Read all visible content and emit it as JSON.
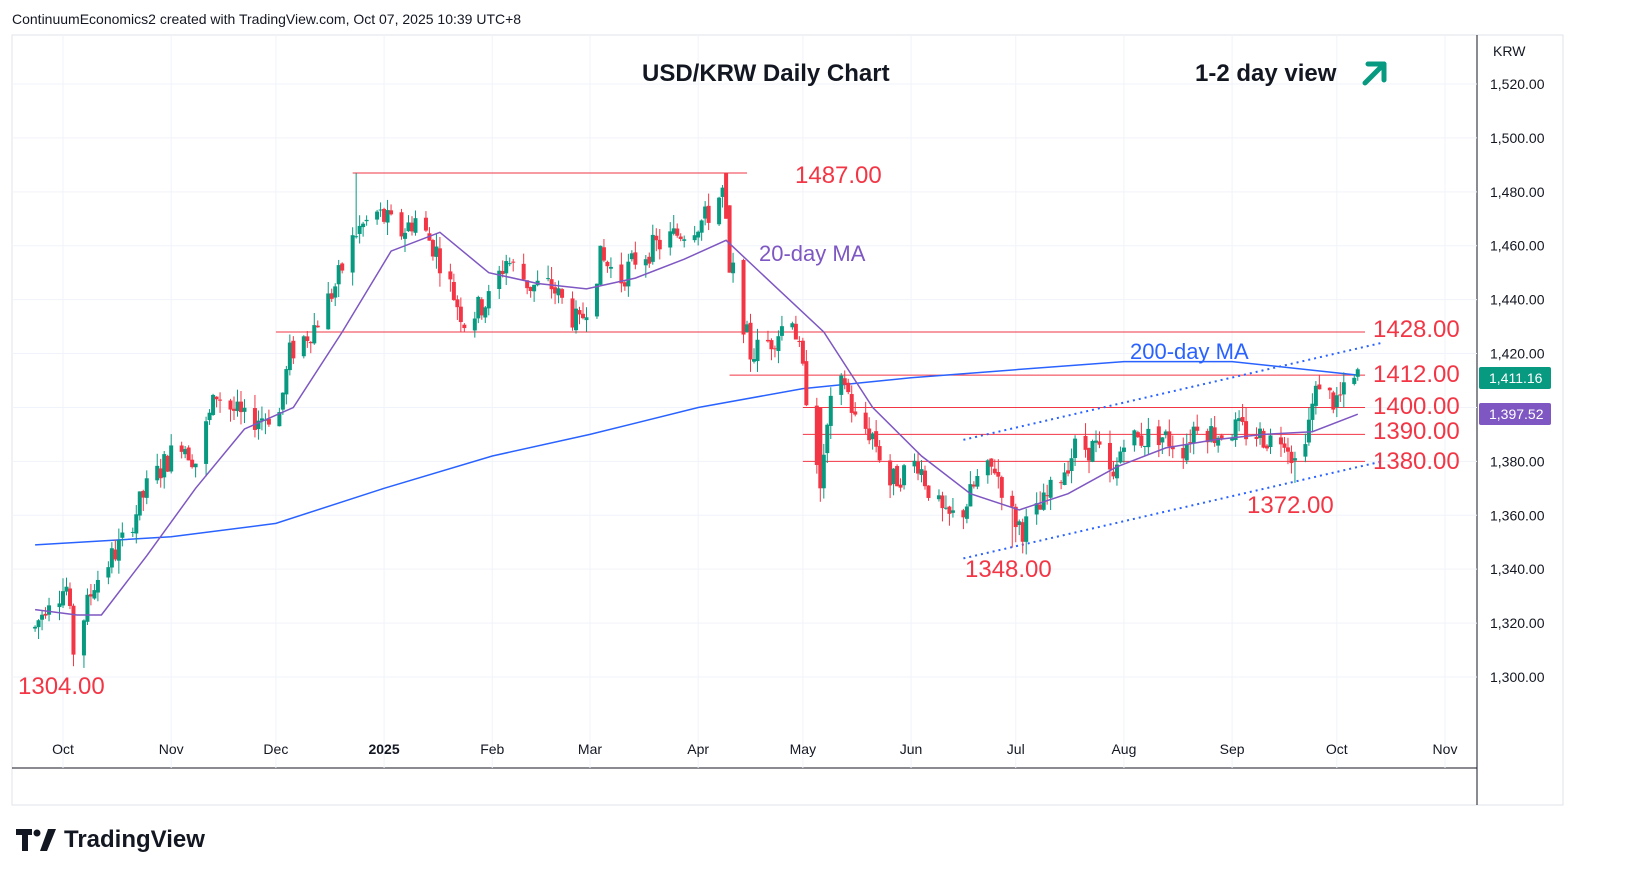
{
  "header": {
    "attribution": "ContinuumEconomics2 created with TradingView.com, Oct 07, 2025 10:39 UTC+8"
  },
  "brand": {
    "name": "TradingView",
    "logo_icon": "tradingview-logo-icon"
  },
  "colors": {
    "up": "#089981",
    "down": "#f23645",
    "ma20": "#7e57c2",
    "ma200": "#2962ff",
    "level": "#f23645",
    "trend": "#2962ff",
    "arrow": "#089981"
  },
  "chart_data": {
    "type": "candlestick",
    "title": "USD/KRW Daily Chart",
    "view_label": "1-2 day view",
    "view_icon": "trend-up-arrow-icon",
    "currency_label": "KRW",
    "y_axis": {
      "range": [
        1282,
        1537
      ],
      "ticks": [
        "1,300.00",
        "1,320.00",
        "1,340.00",
        "1,360.00",
        "1,380.00",
        "1,400.00",
        "1,420.00",
        "1,440.00",
        "1,460.00",
        "1,480.00",
        "1,500.00",
        "1,520.00"
      ],
      "tick_values": [
        1300,
        1320,
        1340,
        1360,
        1380,
        1400,
        1420,
        1440,
        1460,
        1480,
        1500,
        1520
      ]
    },
    "x_axis": {
      "labels": [
        "Oct",
        "Nov",
        "Dec",
        "2025",
        "Feb",
        "Mar",
        "Apr",
        "May",
        "Jun",
        "Jul",
        "Aug",
        "Sep",
        "Oct",
        "Nov"
      ],
      "label_dates": [
        "2024-10-01",
        "2024-11-01",
        "2024-12-01",
        "2025-01-01",
        "2025-02-01",
        "2025-03-01",
        "2025-04-01",
        "2025-05-01",
        "2025-06-01",
        "2025-07-01",
        "2025-08-01",
        "2025-09-01",
        "2025-10-01",
        "2025-11-01"
      ]
    },
    "price_labels": [
      {
        "text": "1,411.16",
        "value": 1411.16,
        "color": "#089981"
      },
      {
        "text": "1,397.52",
        "value": 1397.52,
        "color": "#7e57c2"
      }
    ],
    "levels": [
      {
        "label": "1487.00",
        "value": 1487,
        "from": "2024-12-23",
        "to": "2025-04-15"
      },
      {
        "label": "1428.00",
        "value": 1428,
        "from": "2024-12-01",
        "to": "2025-10-14"
      },
      {
        "label": "1412.00",
        "value": 1412,
        "from": "2025-04-10",
        "to": "2025-10-14"
      },
      {
        "label": "1400.00",
        "value": 1400,
        "from": "2025-05-01",
        "to": "2025-10-14"
      },
      {
        "label": "1390.00",
        "value": 1390,
        "from": "2025-05-01",
        "to": "2025-10-14"
      },
      {
        "label": "1380.00",
        "value": 1380,
        "from": "2025-05-01",
        "to": "2025-10-14"
      }
    ],
    "point_labels": [
      {
        "label": "1304.00",
        "value": 1304
      },
      {
        "label": "1348.00",
        "value": 1348
      },
      {
        "label": "1372.00",
        "value": 1372
      }
    ],
    "annotations": [
      {
        "text": "20-day MA",
        "series": "ma20"
      },
      {
        "text": "200-day MA",
        "series": "ma200"
      }
    ],
    "trendlines": [
      {
        "from": [
          "2025-06-16",
          1344
        ],
        "to": [
          "2025-10-14",
          1380
        ]
      },
      {
        "from": [
          "2025-06-16",
          1388
        ],
        "to": [
          "2025-10-14",
          1424
        ]
      }
    ],
    "anchors": [
      {
        "date": "2024-09-23",
        "price": 1318
      },
      {
        "date": "2024-09-27",
        "price": 1330
      },
      {
        "date": "2024-10-02",
        "price": 1333
      },
      {
        "date": "2024-10-04",
        "price": 1310
      },
      {
        "date": "2024-10-10",
        "price": 1335
      },
      {
        "date": "2024-10-18",
        "price": 1350
      },
      {
        "date": "2024-10-25",
        "price": 1370
      },
      {
        "date": "2024-11-04",
        "price": 1388
      },
      {
        "date": "2024-11-08",
        "price": 1380
      },
      {
        "date": "2024-11-14",
        "price": 1405
      },
      {
        "date": "2024-11-22",
        "price": 1395
      },
      {
        "date": "2024-12-02",
        "price": 1398
      },
      {
        "date": "2024-12-05",
        "price": 1420
      },
      {
        "date": "2024-12-12",
        "price": 1430
      },
      {
        "date": "2024-12-18",
        "price": 1445
      },
      {
        "date": "2024-12-24",
        "price": 1465
      },
      {
        "date": "2024-12-30",
        "price": 1472
      },
      {
        "date": "2025-01-06",
        "price": 1465
      },
      {
        "date": "2025-01-10",
        "price": 1470
      },
      {
        "date": "2025-01-16",
        "price": 1458
      },
      {
        "date": "2025-01-24",
        "price": 1432
      },
      {
        "date": "2025-01-31",
        "price": 1440
      },
      {
        "date": "2025-02-05",
        "price": 1455
      },
      {
        "date": "2025-02-12",
        "price": 1445
      },
      {
        "date": "2025-02-18",
        "price": 1445
      },
      {
        "date": "2025-02-26",
        "price": 1430
      },
      {
        "date": "2025-03-04",
        "price": 1455
      },
      {
        "date": "2025-03-10",
        "price": 1448
      },
      {
        "date": "2025-03-14",
        "price": 1455
      },
      {
        "date": "2025-03-20",
        "price": 1460
      },
      {
        "date": "2025-03-27",
        "price": 1465
      },
      {
        "date": "2025-04-03",
        "price": 1470
      },
      {
        "date": "2025-04-08",
        "price": 1480
      },
      {
        "date": "2025-04-11",
        "price": 1450
      },
      {
        "date": "2025-04-16",
        "price": 1420
      },
      {
        "date": "2025-04-22",
        "price": 1425
      },
      {
        "date": "2025-04-28",
        "price": 1435
      },
      {
        "date": "2025-05-02",
        "price": 1405
      },
      {
        "date": "2025-05-06",
        "price": 1375
      },
      {
        "date": "2025-05-09",
        "price": 1400
      },
      {
        "date": "2025-05-13",
        "price": 1410
      },
      {
        "date": "2025-05-16",
        "price": 1395
      },
      {
        "date": "2025-05-21",
        "price": 1390
      },
      {
        "date": "2025-05-26",
        "price": 1372
      },
      {
        "date": "2025-05-29",
        "price": 1375
      },
      {
        "date": "2025-06-03",
        "price": 1380
      },
      {
        "date": "2025-06-06",
        "price": 1370
      },
      {
        "date": "2025-06-11",
        "price": 1358
      },
      {
        "date": "2025-06-16",
        "price": 1362
      },
      {
        "date": "2025-06-20",
        "price": 1373
      },
      {
        "date": "2025-06-25",
        "price": 1378
      },
      {
        "date": "2025-06-30",
        "price": 1360
      },
      {
        "date": "2025-07-03",
        "price": 1355
      },
      {
        "date": "2025-07-08",
        "price": 1362
      },
      {
        "date": "2025-07-14",
        "price": 1375
      },
      {
        "date": "2025-07-18",
        "price": 1385
      },
      {
        "date": "2025-07-24",
        "price": 1385
      },
      {
        "date": "2025-07-29",
        "price": 1372
      },
      {
        "date": "2025-08-01",
        "price": 1390
      },
      {
        "date": "2025-08-05",
        "price": 1388
      },
      {
        "date": "2025-08-11",
        "price": 1390
      },
      {
        "date": "2025-08-18",
        "price": 1385
      },
      {
        "date": "2025-08-22",
        "price": 1395
      },
      {
        "date": "2025-08-27",
        "price": 1390
      },
      {
        "date": "2025-09-02",
        "price": 1392
      },
      {
        "date": "2025-09-08",
        "price": 1390
      },
      {
        "date": "2025-09-12",
        "price": 1388
      },
      {
        "date": "2025-09-16",
        "price": 1390
      },
      {
        "date": "2025-09-19",
        "price": 1380
      },
      {
        "date": "2025-09-23",
        "price": 1395
      },
      {
        "date": "2025-09-26",
        "price": 1410
      },
      {
        "date": "2025-09-30",
        "price": 1402
      },
      {
        "date": "2025-10-03",
        "price": 1405
      },
      {
        "date": "2025-10-07",
        "price": 1411
      }
    ],
    "ma20": [
      {
        "date": "2024-09-23",
        "price": 1325
      },
      {
        "date": "2024-10-05",
        "price": 1323
      },
      {
        "date": "2024-10-12",
        "price": 1323
      },
      {
        "date": "2024-10-25",
        "price": 1345
      },
      {
        "date": "2024-11-08",
        "price": 1370
      },
      {
        "date": "2024-11-22",
        "price": 1392
      },
      {
        "date": "2024-12-06",
        "price": 1400
      },
      {
        "date": "2024-12-20",
        "price": 1428
      },
      {
        "date": "2025-01-03",
        "price": 1458
      },
      {
        "date": "2025-01-17",
        "price": 1465
      },
      {
        "date": "2025-01-31",
        "price": 1450
      },
      {
        "date": "2025-02-14",
        "price": 1446
      },
      {
        "date": "2025-02-28",
        "price": 1444
      },
      {
        "date": "2025-03-14",
        "price": 1448
      },
      {
        "date": "2025-03-28",
        "price": 1455
      },
      {
        "date": "2025-04-09",
        "price": 1462
      },
      {
        "date": "2025-04-23",
        "price": 1445
      },
      {
        "date": "2025-05-07",
        "price": 1428
      },
      {
        "date": "2025-05-21",
        "price": 1400
      },
      {
        "date": "2025-06-04",
        "price": 1382
      },
      {
        "date": "2025-06-18",
        "price": 1368
      },
      {
        "date": "2025-07-02",
        "price": 1362
      },
      {
        "date": "2025-07-16",
        "price": 1368
      },
      {
        "date": "2025-07-30",
        "price": 1378
      },
      {
        "date": "2025-08-13",
        "price": 1385
      },
      {
        "date": "2025-08-27",
        "price": 1388
      },
      {
        "date": "2025-09-10",
        "price": 1390
      },
      {
        "date": "2025-09-24",
        "price": 1391
      },
      {
        "date": "2025-10-07",
        "price": 1397.5
      }
    ],
    "ma200": [
      {
        "date": "2024-09-23",
        "price": 1349
      },
      {
        "date": "2024-11-01",
        "price": 1352
      },
      {
        "date": "2024-12-01",
        "price": 1357
      },
      {
        "date": "2025-01-01",
        "price": 1370
      },
      {
        "date": "2025-02-01",
        "price": 1382
      },
      {
        "date": "2025-03-01",
        "price": 1390
      },
      {
        "date": "2025-04-01",
        "price": 1400
      },
      {
        "date": "2025-05-01",
        "price": 1407
      },
      {
        "date": "2025-06-01",
        "price": 1411
      },
      {
        "date": "2025-07-01",
        "price": 1414
      },
      {
        "date": "2025-08-01",
        "price": 1417
      },
      {
        "date": "2025-09-01",
        "price": 1417
      },
      {
        "date": "2025-10-07",
        "price": 1412
      }
    ]
  }
}
